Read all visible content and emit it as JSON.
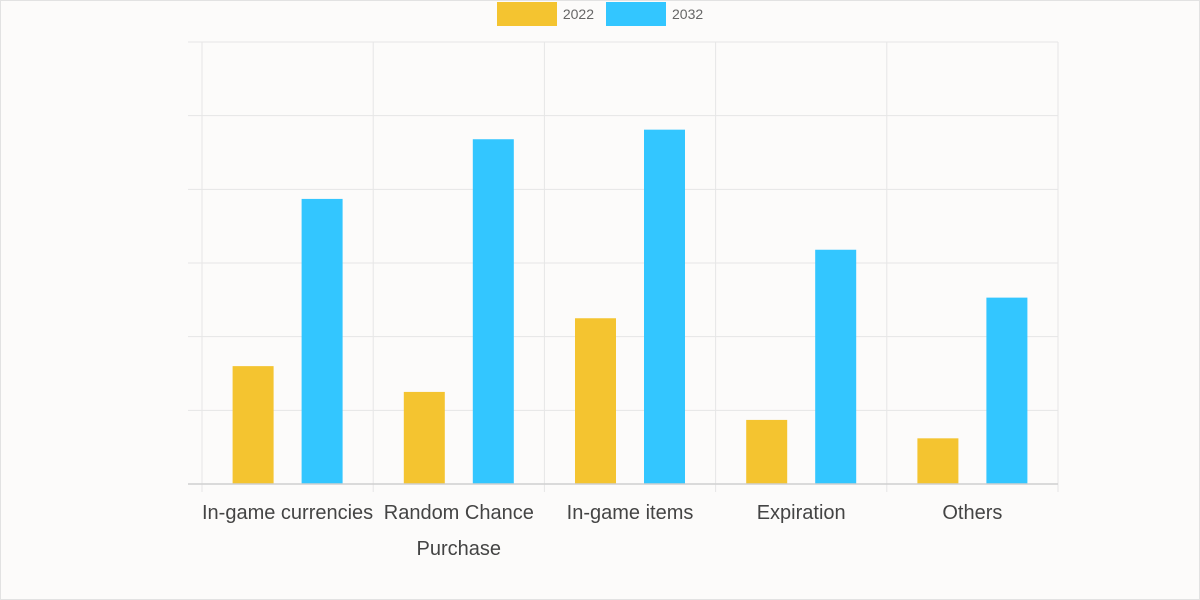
{
  "chart_data": {
    "type": "bar",
    "categories": [
      [
        "In-game currencies"
      ],
      [
        "Random Chance",
        "Purchase"
      ],
      [
        "In-game items"
      ],
      [
        "Expiration"
      ],
      [
        "Others"
      ]
    ],
    "series": [
      {
        "name": "2022",
        "color": "#f4c430",
        "values": [
          1.6,
          1.25,
          2.25,
          0.87,
          0.62
        ]
      },
      {
        "name": "2032",
        "color": "#33c6ff",
        "values": [
          3.87,
          4.68,
          4.81,
          3.18,
          2.53
        ]
      }
    ],
    "ylim": [
      0,
      6
    ],
    "yticks": [
      0,
      1,
      2,
      3,
      4,
      5,
      6
    ],
    "grid": true,
    "legend_position": "top-center",
    "show_y_tick_labels": false
  }
}
